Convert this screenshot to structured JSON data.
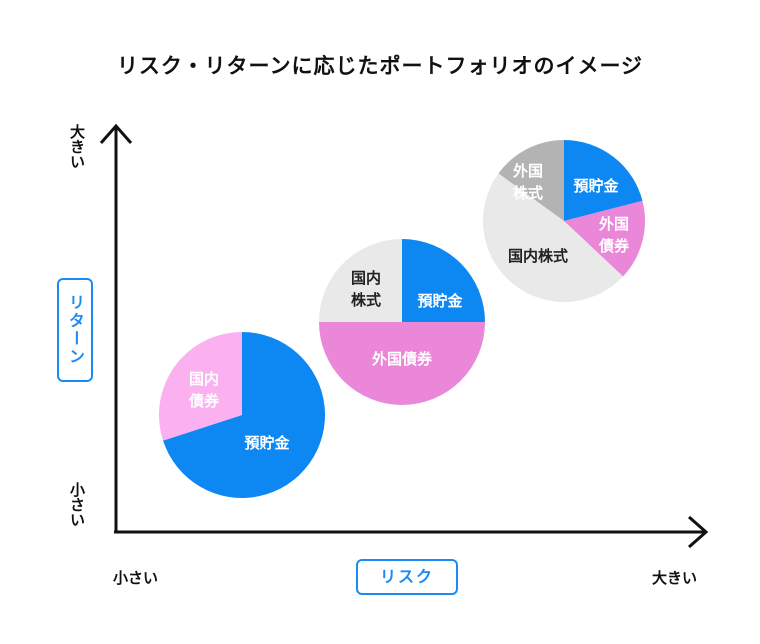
{
  "title": "リスク・リターンに応じたポートフォリオのイメージ",
  "axes": {
    "y_name": "リターン",
    "x_name": "リスク",
    "y_high": "大きい",
    "y_low": "小さい",
    "x_low": "小さい",
    "x_high": "大きい"
  },
  "colors": {
    "deposit": "#0d87f2",
    "foreign_bond": "#ea87d9",
    "domestic_bond": "#fbb0f0",
    "domestic_stock": "#e9e9e9",
    "foreign_stock": "#b3b3b3",
    "accent": "#1a8bf5"
  },
  "chart_data": {
    "type": "pie",
    "portfolios": [
      {
        "slices": [
          {
            "label": "預貯金",
            "value": 70,
            "color_key": "deposit",
            "text_color": "#ffffff"
          },
          {
            "label": "国内債券",
            "value": 30,
            "color_key": "domestic_bond",
            "text_color": "#ffffff"
          }
        ]
      },
      {
        "slices": [
          {
            "label": "預貯金",
            "value": 25,
            "color_key": "deposit",
            "text_color": "#ffffff"
          },
          {
            "label": "外国債券",
            "value": 50,
            "color_key": "foreign_bond",
            "text_color": "#ffffff"
          },
          {
            "label": "国内株式",
            "value": 25,
            "color_key": "domestic_stock",
            "text_color": "#222222"
          }
        ]
      },
      {
        "slices": [
          {
            "label": "預貯金",
            "value": 21,
            "color_key": "deposit",
            "text_color": "#ffffff"
          },
          {
            "label": "外国債券",
            "value": 16,
            "color_key": "foreign_bond",
            "text_color": "#ffffff"
          },
          {
            "label": "国内株式",
            "value": 48,
            "color_key": "domestic_stock",
            "text_color": "#222222"
          },
          {
            "label": "外国株式",
            "value": 15,
            "color_key": "foreign_stock",
            "text_color": "#ffffff"
          }
        ]
      }
    ]
  }
}
